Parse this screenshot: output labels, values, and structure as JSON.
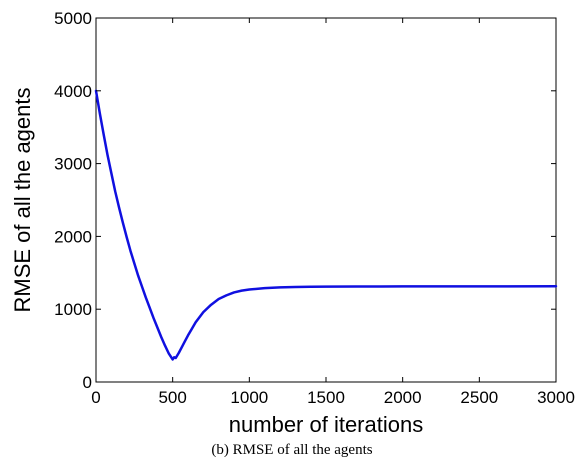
{
  "chart_data": {
    "type": "line",
    "title": "",
    "xlabel": "number of iterations",
    "ylabel": "RMSE of all the agents",
    "xlim": [
      0,
      3000
    ],
    "ylim": [
      0,
      5000
    ],
    "xticks": [
      0,
      500,
      1000,
      1500,
      2000,
      2500,
      3000
    ],
    "yticks": [
      0,
      1000,
      2000,
      3000,
      4000,
      5000
    ],
    "grid": false,
    "legend": "none",
    "series": [
      {
        "color": "#1010e0",
        "x": [
          0,
          25,
          50,
          75,
          100,
          125,
          150,
          175,
          200,
          225,
          250,
          275,
          300,
          325,
          350,
          375,
          400,
          425,
          450,
          475,
          500,
          510,
          520,
          540,
          560,
          580,
          600,
          625,
          650,
          700,
          750,
          800,
          850,
          900,
          950,
          1000,
          1100,
          1200,
          1300,
          1400,
          1500,
          1700,
          2000,
          2500,
          3000
        ],
        "y": [
          4000,
          3690,
          3400,
          3120,
          2870,
          2620,
          2400,
          2190,
          1990,
          1800,
          1630,
          1460,
          1310,
          1160,
          1020,
          880,
          750,
          620,
          500,
          390,
          310,
          340,
          330,
          400,
          480,
          560,
          640,
          730,
          820,
          960,
          1060,
          1140,
          1190,
          1230,
          1255,
          1270,
          1290,
          1300,
          1305,
          1308,
          1310,
          1312,
          1313,
          1314,
          1315
        ]
      }
    ]
  },
  "caption": "(b) RMSE of all the agents"
}
